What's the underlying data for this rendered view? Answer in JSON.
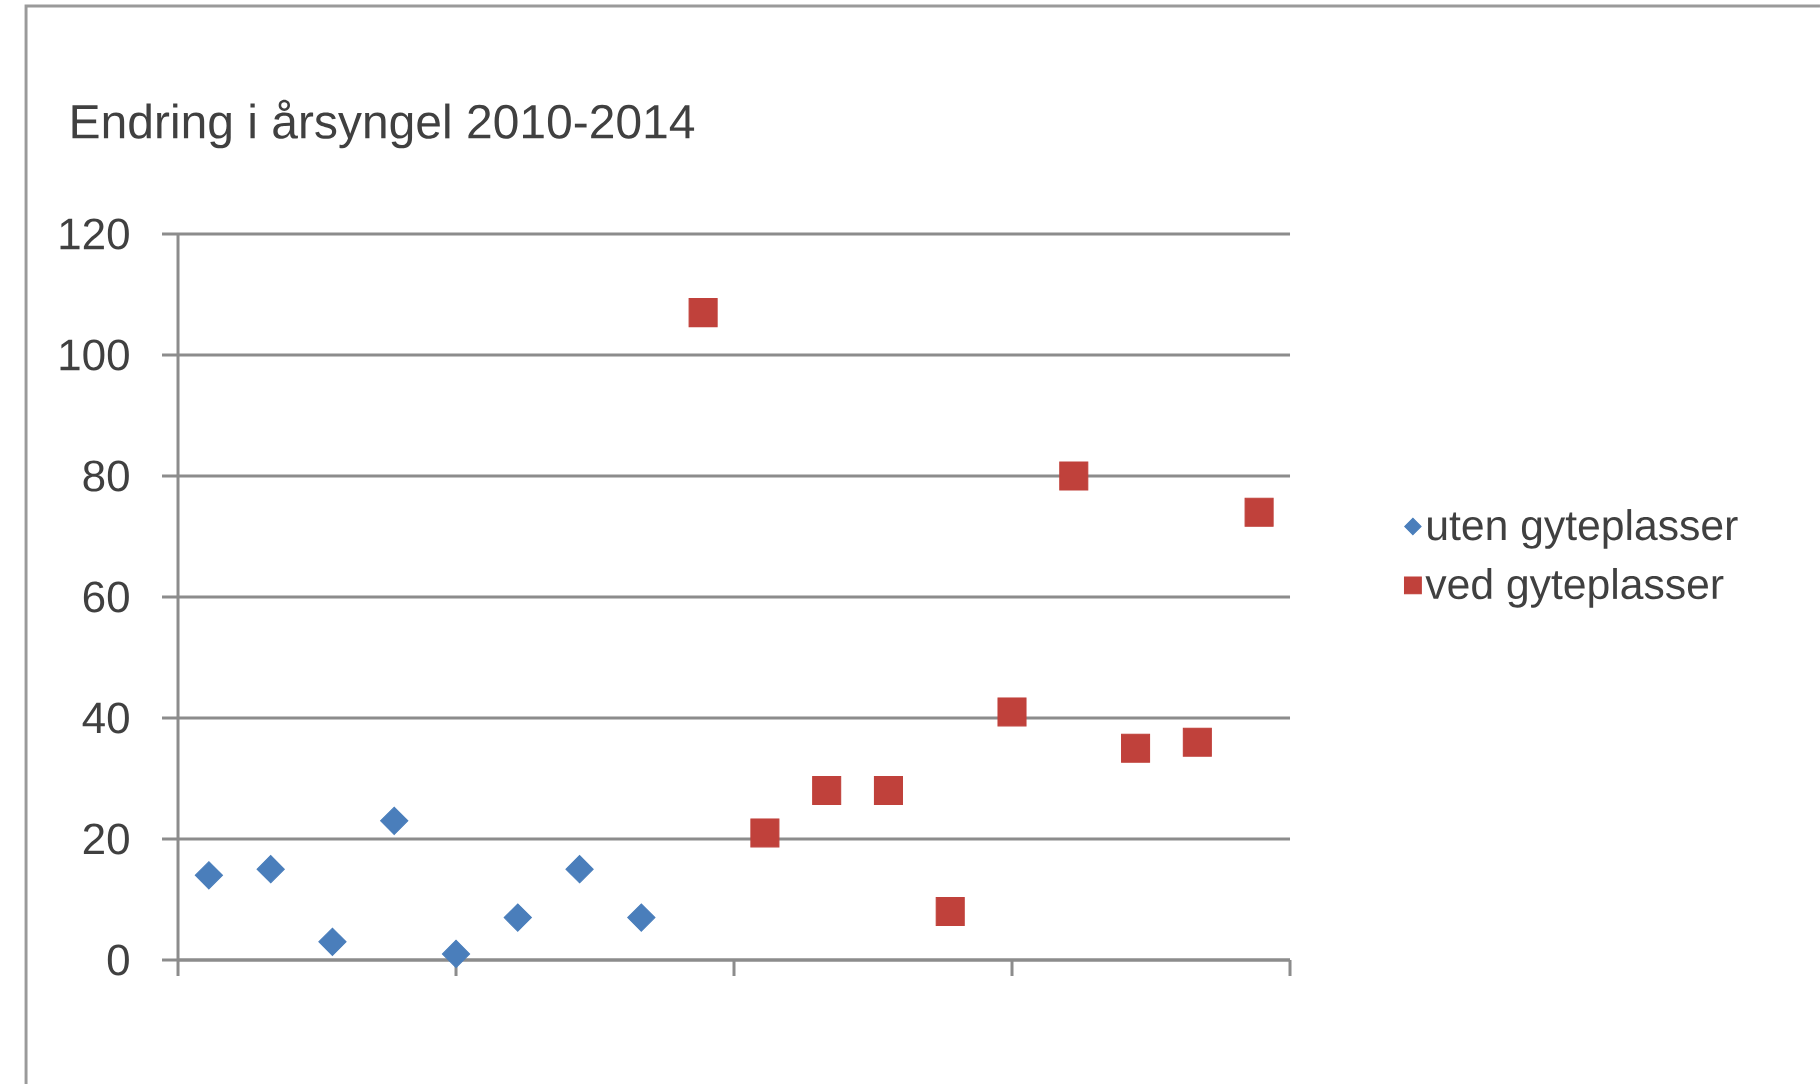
{
  "chart_data": {
    "type": "scatter",
    "title": "Endring i årsyngel 2010-2014",
    "categories": [
      null,
      null,
      null,
      null,
      null,
      null,
      null,
      null,
      null,
      null,
      null,
      null,
      null,
      null,
      null,
      null,
      null,
      null
    ],
    "series": [
      {
        "name": "uten gyteplasser",
        "color": "#4a7ebb",
        "marker": "diamond",
        "values": [
          14,
          15,
          3,
          23,
          1,
          7,
          15,
          7,
          null,
          null,
          null,
          null,
          null,
          null,
          null,
          null,
          null,
          null
        ]
      },
      {
        "name": "ved gyteplasser",
        "color": "#c0413b",
        "marker": "square",
        "values": [
          null,
          null,
          null,
          null,
          null,
          null,
          null,
          null,
          107,
          21,
          28,
          28,
          8,
          41,
          80,
          35,
          36,
          74
        ]
      }
    ],
    "ylim": [
      0,
      120
    ],
    "yticks": [
      0,
      20,
      40,
      60,
      80,
      100,
      120
    ],
    "grid": "y",
    "legend": "right"
  }
}
